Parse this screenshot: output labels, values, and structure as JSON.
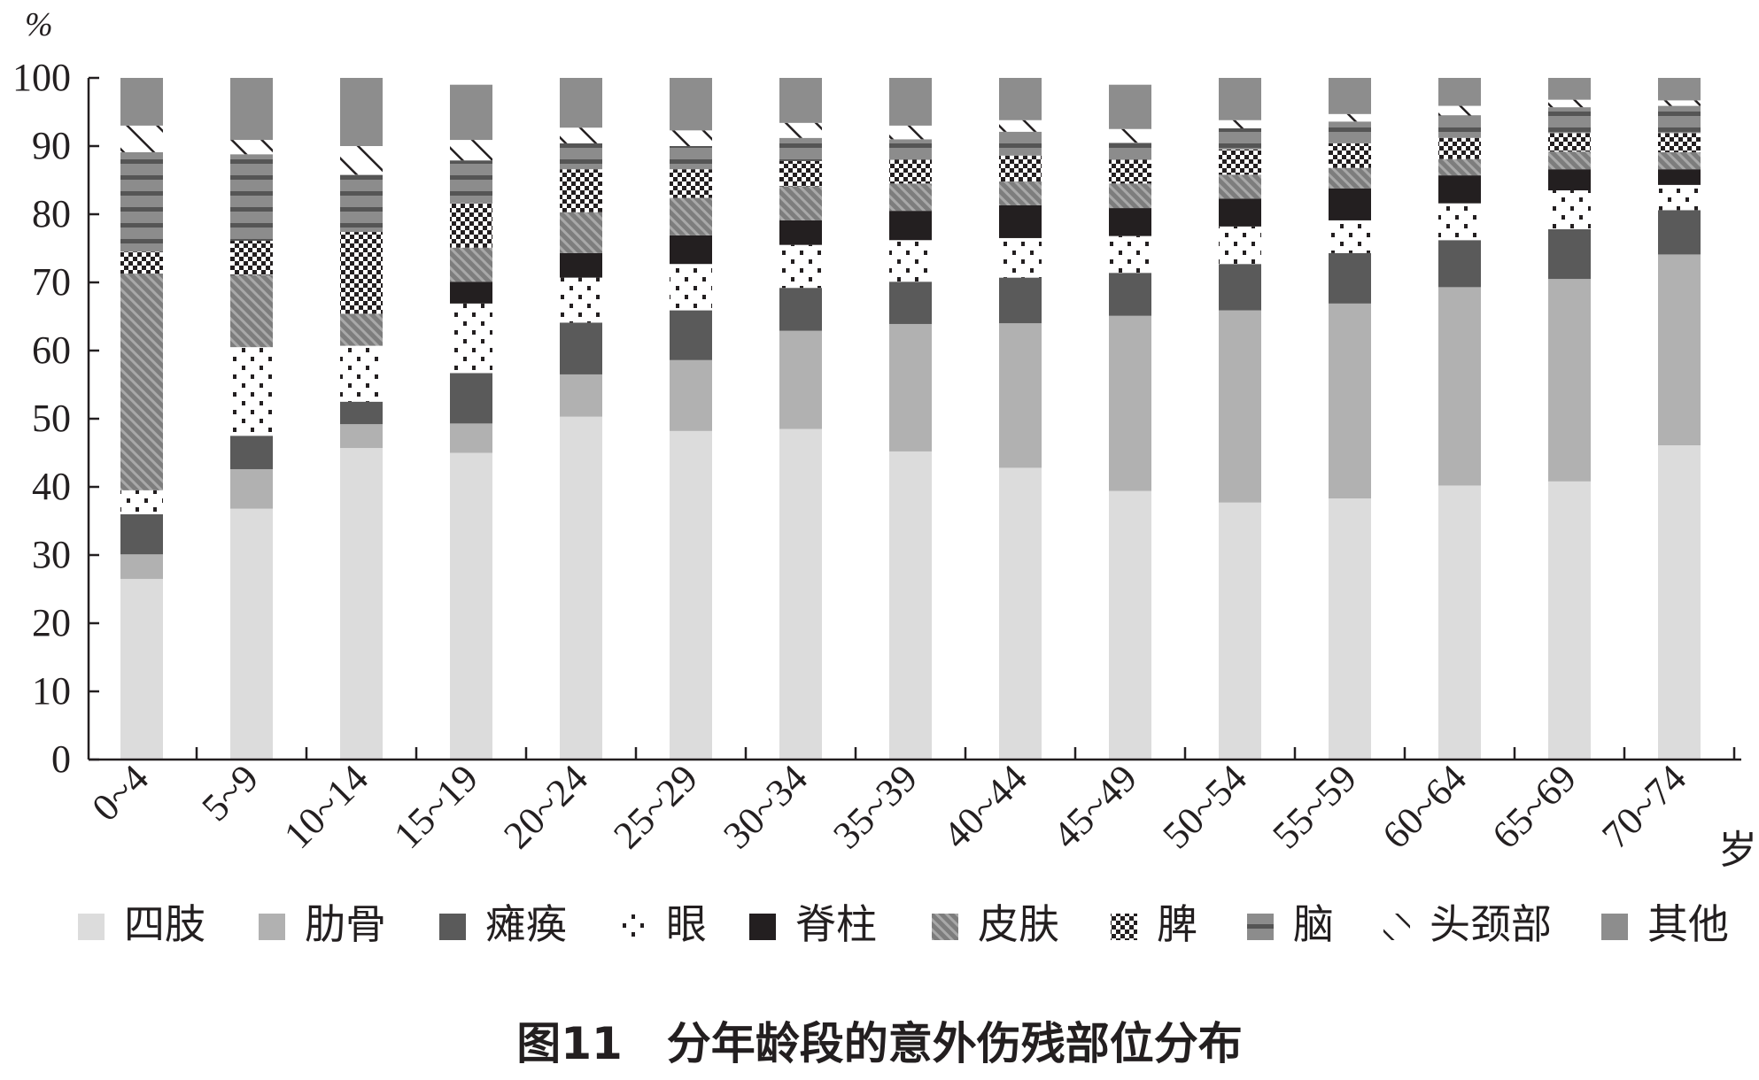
{
  "chart_data": {
    "type": "bar",
    "stacked": true,
    "caption": "图11　分年龄段的意外伤残部位分布",
    "y_unit": "%",
    "x_unit": "岁",
    "ylim": [
      0,
      100
    ],
    "yticks": [
      0,
      10,
      20,
      30,
      40,
      50,
      60,
      70,
      80,
      90,
      100
    ],
    "grid": false,
    "legend_position": "bottom",
    "categories": [
      "0~4",
      "5~9",
      "10~14",
      "15~19",
      "20~24",
      "25~29",
      "30~34",
      "35~39",
      "40~44",
      "45~49",
      "50~54",
      "55~59",
      "60~64",
      "65~69",
      "70~74"
    ],
    "series": [
      {
        "name": "四肢",
        "pattern": "solid",
        "color": "#dcdcdc",
        "values": [
          26.5,
          36.8,
          45.7,
          45.0,
          50.3,
          48.2,
          48.5,
          45.2,
          42.8,
          39.4,
          37.7,
          38.3,
          40.2,
          40.8,
          46.1
        ]
      },
      {
        "name": "肋骨",
        "pattern": "solid",
        "color": "#b1b1b1",
        "values": [
          3.6,
          5.8,
          3.5,
          4.3,
          6.2,
          10.4,
          14.4,
          18.7,
          21.2,
          25.7,
          28.2,
          28.6,
          29.1,
          29.7,
          28.0
        ]
      },
      {
        "name": "瘫痪",
        "pattern": "solid",
        "color": "#5a5a5a",
        "values": [
          5.9,
          4.9,
          3.3,
          7.4,
          7.6,
          7.3,
          6.3,
          6.2,
          6.7,
          6.3,
          6.8,
          7.4,
          6.9,
          7.3,
          6.5
        ]
      },
      {
        "name": "眼",
        "pattern": "dots",
        "color": "#ffffff",
        "values": [
          3.5,
          13.0,
          8.2,
          10.2,
          6.6,
          6.8,
          6.3,
          6.1,
          5.8,
          5.4,
          5.5,
          4.8,
          5.4,
          5.7,
          3.7
        ]
      },
      {
        "name": "脊柱",
        "pattern": "solid",
        "color": "#231f20",
        "values": [
          0.0,
          0.0,
          0.0,
          3.2,
          3.6,
          4.2,
          3.6,
          4.3,
          4.8,
          4.1,
          4.1,
          4.7,
          4.1,
          3.1,
          2.3
        ]
      },
      {
        "name": "皮肤",
        "pattern": "diag",
        "color": "#8a8a8a",
        "values": [
          31.8,
          10.6,
          4.7,
          5.0,
          6.0,
          5.5,
          5.0,
          4.0,
          3.5,
          3.6,
          3.5,
          3.0,
          2.4,
          2.6,
          2.5
        ]
      },
      {
        "name": "脾",
        "pattern": "checker",
        "color": "#ffffff",
        "values": [
          3.2,
          5.0,
          12.0,
          6.5,
          6.3,
          4.2,
          3.7,
          3.5,
          3.8,
          3.5,
          3.7,
          3.6,
          3.1,
          2.7,
          2.8
        ]
      },
      {
        "name": "脑",
        "pattern": "hstripe",
        "color": "#7a7a7a",
        "values": [
          14.6,
          12.7,
          8.4,
          6.3,
          3.8,
          3.4,
          3.4,
          3.0,
          3.5,
          2.5,
          3.1,
          3.2,
          3.3,
          3.8,
          4.0
        ]
      },
      {
        "name": "头颈部",
        "pattern": "hatch",
        "color": "#ffffff",
        "values": [
          3.9,
          2.1,
          4.2,
          3.0,
          2.3,
          2.3,
          2.2,
          2.0,
          1.7,
          2.0,
          1.2,
          1.1,
          1.4,
          1.1,
          0.8
        ]
      },
      {
        "name": "其他",
        "pattern": "solid",
        "color": "#8d8d8d",
        "values": [
          7.0,
          9.1,
          10.0,
          8.1,
          7.3,
          7.7,
          6.6,
          7.0,
          6.2,
          6.5,
          6.2,
          5.3,
          4.1,
          3.2,
          3.3
        ]
      }
    ]
  }
}
